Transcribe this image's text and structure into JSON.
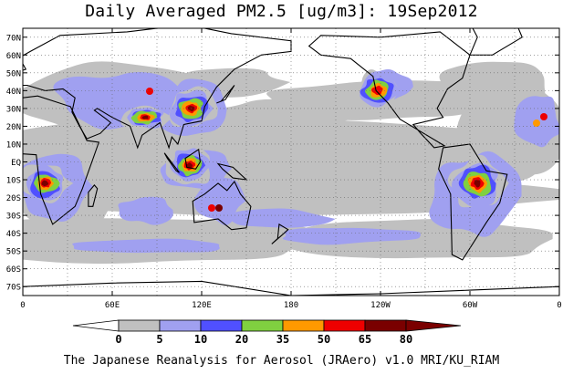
{
  "title": "Daily Averaged PM2.5 [ug/m3]: 19Sep2012",
  "footer": "The Japanese Reanalysis for Aerosol (JRAero) v1.0 MRI/KU_RIAM",
  "map": {
    "lat_labels": [
      "70N",
      "60N",
      "50N",
      "40N",
      "30N",
      "20N",
      "10N",
      "EQ",
      "10S",
      "20S",
      "30S",
      "40S",
      "50S",
      "60S",
      "70S"
    ],
    "lat_values": [
      70,
      60,
      50,
      40,
      30,
      20,
      10,
      0,
      -10,
      -20,
      -30,
      -40,
      -50,
      -60,
      -70
    ],
    "lon_labels": [
      "0",
      "60E",
      "120E",
      "180",
      "120W",
      "60W",
      "0"
    ],
    "lon_values": [
      0,
      60,
      120,
      180,
      240,
      300,
      360
    ],
    "lat_range": [
      -75,
      75
    ],
    "lon_range": [
      0,
      360
    ],
    "grid_lines": "dotted"
  },
  "colorbar": {
    "tick_labels": [
      "0",
      "5",
      "10",
      "20",
      "35",
      "50",
      "65",
      "80"
    ],
    "colors": [
      "#ffffff",
      "#c0c0c0",
      "#a0a0f0",
      "#5050ff",
      "#80d040",
      "#ff9900",
      "#ee0000",
      "#7a0000"
    ]
  },
  "features": [
    {
      "name": "sahel-africa-plume",
      "lon": 15,
      "lat": -12,
      "levels": [
        1,
        2,
        3,
        4,
        5,
        6,
        7
      ]
    },
    {
      "name": "india-plume",
      "lon": 82,
      "lat": 25,
      "levels": [
        1,
        2,
        3,
        4,
        5,
        6,
        7
      ]
    },
    {
      "name": "china-plume",
      "lon": 113,
      "lat": 30,
      "levels": [
        1,
        2,
        3,
        4,
        5,
        6,
        7
      ]
    },
    {
      "name": "indonesia-plume",
      "lon": 112,
      "lat": -2,
      "levels": [
        1,
        2,
        3,
        4,
        5,
        6,
        7
      ]
    },
    {
      "name": "amazon-plume",
      "lon": 305,
      "lat": -12,
      "levels": [
        1,
        2,
        3,
        4,
        5,
        6,
        7
      ]
    },
    {
      "name": "western-us-plume",
      "lon": 238,
      "lat": 40,
      "levels": [
        1,
        2,
        3,
        4,
        5,
        6
      ]
    }
  ]
}
